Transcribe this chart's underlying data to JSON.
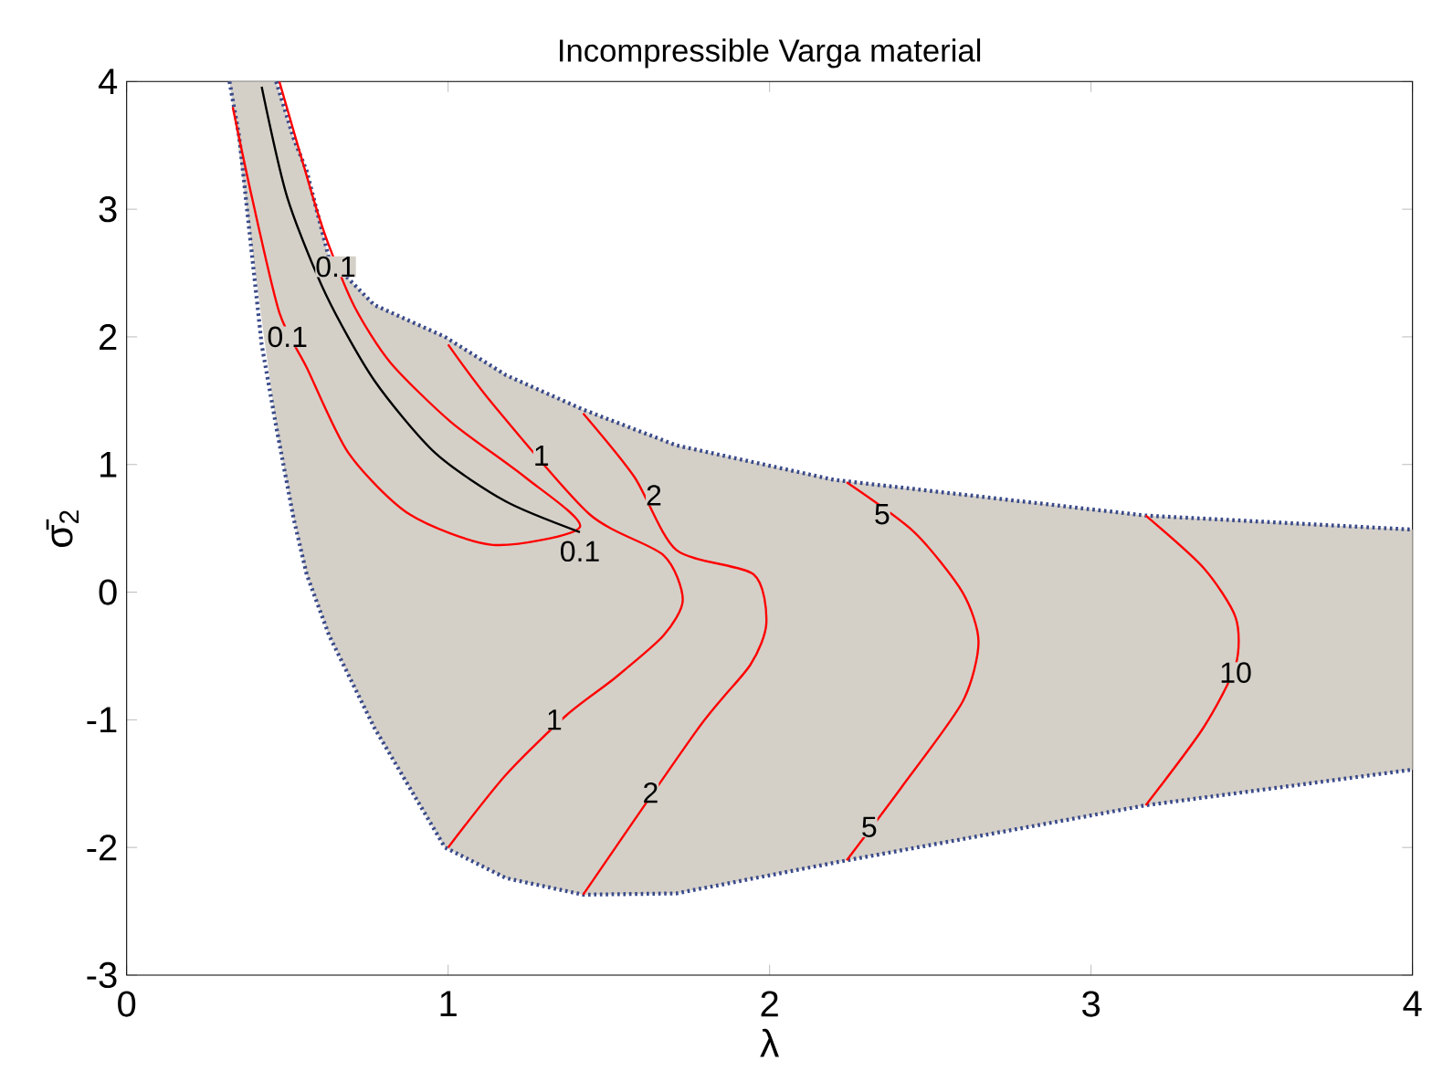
{
  "chart_data": {
    "type": "line",
    "title": "Incompressible Varga material",
    "xlabel": "λ",
    "ylabel": "σ̄$_{2}$",
    "xlim": [
      0,
      4
    ],
    "ylim": [
      -3,
      4
    ],
    "xticks": [
      0,
      1,
      2,
      3,
      4
    ],
    "yticks": [
      -3,
      -2,
      -1,
      0,
      1,
      2,
      3,
      4
    ],
    "marker": "none",
    "series": [
      {
        "type": "area",
        "color": "#d4d0c8",
        "x": [
          0.32,
          0.465,
          0.52,
          0.56,
          0.63,
          0.77,
          0.99,
          1.18,
          1.42,
          1.71,
          2.2,
          3.17,
          4
        ],
        "values": [
          null,
          null,
          null,
          null,
          null,
          null,
          null,
          null,
          null,
          null,
          null,
          null,
          null
        ],
        "lower": [
          4,
          1.3,
          0.57,
          0.14,
          -0.34,
          -1.06,
          -2.0,
          -2.24,
          -2.37,
          -2.36,
          -2.12,
          -1.67,
          -1.39
        ],
        "upper": [
          4,
          4,
          3.55,
          3.3,
          2.61,
          2.25,
          2.0,
          1.7,
          1.43,
          1.15,
          0.88,
          0.6,
          0.49
        ]
      },
      {
        "color": "#3a4a8a",
        "line_style": "dotted",
        "x": [
          0.465,
          0.52,
          0.56,
          0.63,
          0.77,
          0.99,
          1.18,
          1.42,
          1.71,
          2.2,
          3.17,
          4
        ],
        "values": [
          4,
          3.55,
          3.3,
          2.61,
          2.25,
          2.0,
          1.7,
          1.43,
          1.15,
          0.88,
          0.6,
          0.49
        ]
      },
      {
        "color": "#3a4a8a",
        "line_style": "dotted",
        "x": [
          0.32,
          0.35,
          0.42,
          0.465,
          0.52,
          0.56,
          0.63,
          0.77,
          0.99,
          1.18,
          1.42,
          1.71,
          2.2,
          3.17,
          4
        ],
        "values": [
          4,
          3.57,
          1.94,
          1.3,
          0.57,
          0.14,
          -0.34,
          -1.06,
          -2.0,
          -2.24,
          -2.37,
          -2.36,
          -2.12,
          -1.67,
          -1.39
        ]
      },
      {
        "color": "#ff0000",
        "x": [
          0.33,
          0.39,
          0.475,
          0.56,
          0.69,
          0.88,
          1.14,
          1.41,
          1.24,
          1.01,
          0.82,
          0.71,
          0.63,
          0.58,
          0.475
        ],
        "values": [
          3.8,
          3.09,
          2.19,
          1.76,
          1.09,
          0.61,
          0.37,
          0.51,
          0.9,
          1.33,
          1.8,
          2.23,
          2.71,
          3.09,
          4
        ]
      },
      {
        "color": "#000000",
        "x": [
          0.42,
          0.5,
          0.62,
          0.77,
          0.96,
          1.18,
          1.41
        ],
        "values": [
          3.96,
          3.09,
          2.33,
          1.66,
          1.09,
          0.71,
          0.47
        ]
      },
      {
        "color": "#ff0000",
        "x": [
          1.0,
          1.14,
          1.44,
          1.67,
          1.73,
          1.67,
          1.52,
          1.37,
          1.18,
          1.0
        ],
        "values": [
          1.94,
          1.47,
          0.61,
          0.29,
          -0.06,
          -0.34,
          -0.67,
          -0.96,
          -1.43,
          -2.0
        ]
      },
      {
        "color": "#ff0000",
        "x": [
          1.42,
          1.58,
          1.71,
          1.95,
          1.99,
          1.94,
          1.78,
          1.42
        ],
        "values": [
          1.4,
          0.9,
          0.33,
          0.14,
          -0.24,
          -0.57,
          -1.06,
          -2.37
        ]
      },
      {
        "color": "#ff0000",
        "x": [
          2.24,
          2.45,
          2.6,
          2.65,
          2.6,
          2.41,
          2.24
        ],
        "values": [
          0.86,
          0.47,
          0,
          -0.39,
          -0.86,
          -1.53,
          -2.1
        ]
      },
      {
        "color": "#ff0000",
        "x": [
          3.17,
          3.35,
          3.45,
          3.45,
          3.35,
          3.17
        ],
        "values": [
          0.6,
          0.19,
          -0.2,
          -0.57,
          -1.06,
          -1.67
        ]
      }
    ],
    "annotations": [
      {
        "text": "0.1",
        "x": 0.65,
        "y": 2.55
      },
      {
        "text": "0.1",
        "x": 0.5,
        "y": 2.0
      },
      {
        "text": "0.1",
        "x": 1.41,
        "y": 0.32
      },
      {
        "text": "1",
        "x": 1.29,
        "y": 1.07
      },
      {
        "text": "1",
        "x": 1.33,
        "y": -1.0
      },
      {
        "text": "2",
        "x": 1.64,
        "y": 0.76
      },
      {
        "text": "2",
        "x": 1.63,
        "y": -1.57
      },
      {
        "text": "5",
        "x": 2.35,
        "y": 0.61
      },
      {
        "text": "5",
        "x": 2.31,
        "y": -1.84
      },
      {
        "text": "10",
        "x": 3.45,
        "y": -0.63
      }
    ]
  }
}
